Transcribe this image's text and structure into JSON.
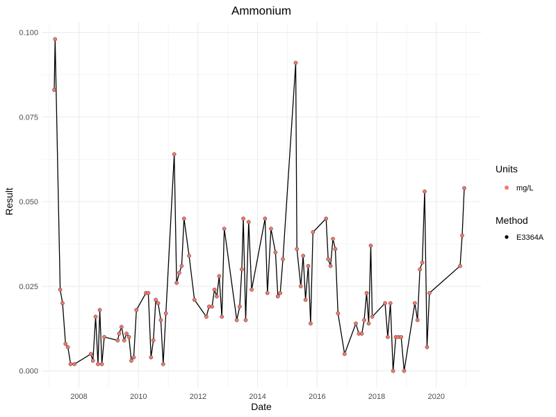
{
  "chart_data": {
    "type": "line",
    "title": "Ammonium",
    "xlabel": "Date",
    "ylabel": "Result",
    "x_ticks": [
      "2008",
      "2010",
      "2012",
      "2014",
      "2016",
      "2018",
      "2020"
    ],
    "y_ticks": [
      "0.000",
      "0.025",
      "0.050",
      "0.075",
      "0.100"
    ],
    "xlim": [
      2006.75,
      2021.5
    ],
    "ylim": [
      -0.005,
      0.103
    ],
    "grid": true,
    "legend": {
      "placement": "right",
      "groups": [
        {
          "title": "Units",
          "entries": [
            {
              "label": "mg/L",
              "color": "#F8766D",
              "shape": "point"
            }
          ]
        },
        {
          "title": "Method",
          "entries": [
            {
              "label": "E3364A",
              "color": "#000000",
              "shape": "point"
            }
          ]
        }
      ]
    },
    "series": [
      {
        "point_color": "#F8766D",
        "line_color": "#000000",
        "points": [
          [
            2007.17,
            0.083
          ],
          [
            2007.2,
            0.098
          ],
          [
            2007.37,
            0.024
          ],
          [
            2007.45,
            0.02
          ],
          [
            2007.55,
            0.008
          ],
          [
            2007.63,
            0.007
          ],
          [
            2007.72,
            0.002
          ],
          [
            2007.85,
            0.002
          ],
          [
            2008.4,
            0.005
          ],
          [
            2008.47,
            0.003
          ],
          [
            2008.56,
            0.016
          ],
          [
            2008.64,
            0.002
          ],
          [
            2008.7,
            0.018
          ],
          [
            2008.77,
            0.002
          ],
          [
            2008.85,
            0.01
          ],
          [
            2009.3,
            0.009
          ],
          [
            2009.35,
            0.011
          ],
          [
            2009.43,
            0.013
          ],
          [
            2009.52,
            0.009
          ],
          [
            2009.6,
            0.011
          ],
          [
            2009.68,
            0.01
          ],
          [
            2009.76,
            0.003
          ],
          [
            2009.84,
            0.004
          ],
          [
            2009.93,
            0.018
          ],
          [
            2010.25,
            0.023
          ],
          [
            2010.33,
            0.023
          ],
          [
            2010.42,
            0.004
          ],
          [
            2010.5,
            0.009
          ],
          [
            2010.58,
            0.021
          ],
          [
            2010.66,
            0.02
          ],
          [
            2010.75,
            0.015
          ],
          [
            2010.83,
            0.002
          ],
          [
            2010.92,
            0.017
          ],
          [
            2011.2,
            0.064
          ],
          [
            2011.28,
            0.026
          ],
          [
            2011.37,
            0.029
          ],
          [
            2011.45,
            0.031
          ],
          [
            2011.53,
            0.045
          ],
          [
            2011.7,
            0.034
          ],
          [
            2011.88,
            0.021
          ],
          [
            2012.28,
            0.016
          ],
          [
            2012.37,
            0.019
          ],
          [
            2012.47,
            0.019
          ],
          [
            2012.55,
            0.024
          ],
          [
            2012.63,
            0.022
          ],
          [
            2012.71,
            0.028
          ],
          [
            2012.8,
            0.016
          ],
          [
            2012.88,
            0.042
          ],
          [
            2013.3,
            0.015
          ],
          [
            2013.4,
            0.019
          ],
          [
            2013.47,
            0.03
          ],
          [
            2013.52,
            0.045
          ],
          [
            2013.6,
            0.015
          ],
          [
            2013.7,
            0.044
          ],
          [
            2013.8,
            0.024
          ],
          [
            2014.25,
            0.045
          ],
          [
            2014.33,
            0.023
          ],
          [
            2014.45,
            0.042
          ],
          [
            2014.6,
            0.035
          ],
          [
            2014.68,
            0.022
          ],
          [
            2014.76,
            0.023
          ],
          [
            2014.85,
            0.033
          ],
          [
            2015.28,
            0.091
          ],
          [
            2015.32,
            0.036
          ],
          [
            2015.45,
            0.025
          ],
          [
            2015.53,
            0.034
          ],
          [
            2015.61,
            0.021
          ],
          [
            2015.7,
            0.031
          ],
          [
            2015.78,
            0.014
          ],
          [
            2015.86,
            0.041
          ],
          [
            2016.3,
            0.045
          ],
          [
            2016.37,
            0.033
          ],
          [
            2016.45,
            0.031
          ],
          [
            2016.53,
            0.039
          ],
          [
            2016.61,
            0.036
          ],
          [
            2016.7,
            0.017
          ],
          [
            2016.92,
            0.005
          ],
          [
            2017.3,
            0.014
          ],
          [
            2017.4,
            0.011
          ],
          [
            2017.5,
            0.011
          ],
          [
            2017.58,
            0.015
          ],
          [
            2017.66,
            0.023
          ],
          [
            2017.73,
            0.014
          ],
          [
            2017.8,
            0.037
          ],
          [
            2017.85,
            0.016
          ],
          [
            2018.28,
            0.02
          ],
          [
            2018.37,
            0.01
          ],
          [
            2018.46,
            0.02
          ],
          [
            2018.55,
            0.0
          ],
          [
            2018.64,
            0.01
          ],
          [
            2018.73,
            0.01
          ],
          [
            2018.82,
            0.01
          ],
          [
            2018.92,
            0.0
          ],
          [
            2019.28,
            0.02
          ],
          [
            2019.37,
            0.015
          ],
          [
            2019.45,
            0.03
          ],
          [
            2019.53,
            0.032
          ],
          [
            2019.61,
            0.053
          ],
          [
            2019.69,
            0.007
          ],
          [
            2019.77,
            0.023
          ],
          [
            2020.8,
            0.031
          ],
          [
            2020.87,
            0.04
          ],
          [
            2020.94,
            0.054
          ]
        ]
      }
    ]
  }
}
